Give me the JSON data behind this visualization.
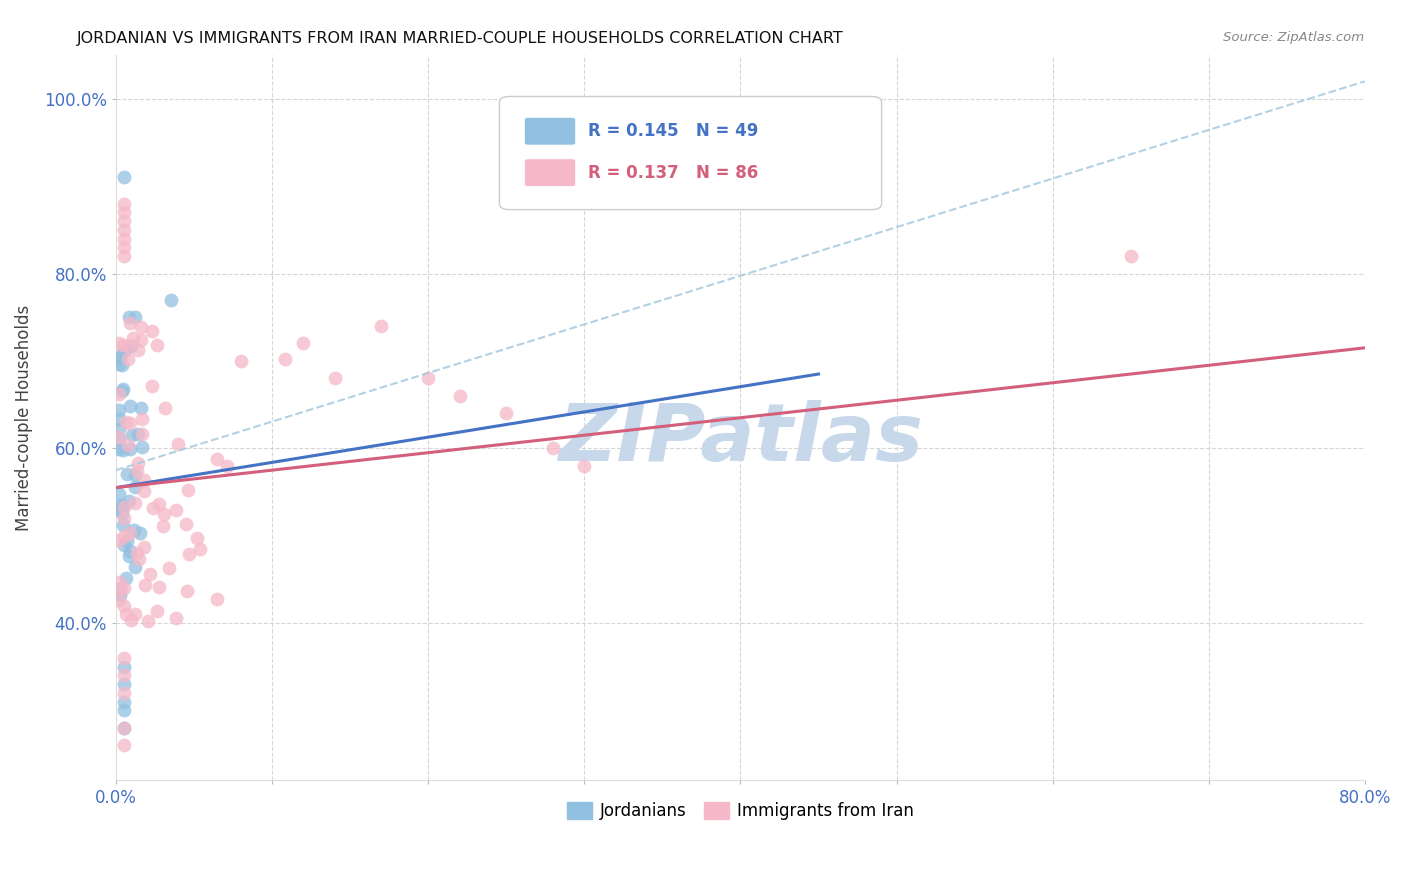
{
  "title": "JORDANIAN VS IMMIGRANTS FROM IRAN MARRIED-COUPLE HOUSEHOLDS CORRELATION CHART",
  "source": "Source: ZipAtlas.com",
  "ylabel": "Married-couple Households",
  "xlim": [
    0.0,
    0.8
  ],
  "ylim": [
    0.22,
    1.05
  ],
  "xtick_positions": [
    0.0,
    0.1,
    0.2,
    0.3,
    0.4,
    0.5,
    0.6,
    0.7,
    0.8
  ],
  "xticklabels": [
    "0.0%",
    "",
    "",
    "",
    "",
    "",
    "",
    "",
    "80.0%"
  ],
  "ytick_positions": [
    0.4,
    0.6,
    0.8,
    1.0
  ],
  "yticklabels": [
    "40.0%",
    "60.0%",
    "80.0%",
    "100.0%"
  ],
  "blue_R": 0.145,
  "blue_N": 49,
  "pink_R": 0.137,
  "pink_N": 86,
  "blue_scatter_color": "#92C0E0",
  "pink_scatter_color": "#F5B8C8",
  "blue_line_color": "#4472C4",
  "pink_line_color": "#D45F7A",
  "dashed_line_color": "#AACCE0",
  "text_color": "#4472C4",
  "watermark_color": "#C8D8EB",
  "background_color": "#FFFFFF",
  "grid_color": "#CCCCCC",
  "blue_line_x0": 0.0,
  "blue_line_x1": 0.45,
  "blue_line_y0": 0.555,
  "blue_line_y1": 0.685,
  "pink_line_x0": 0.0,
  "pink_line_x1": 0.8,
  "pink_line_y0": 0.555,
  "pink_line_y1": 0.715,
  "dash_line_x0": 0.0,
  "dash_line_x1": 0.8,
  "dash_line_y0": 0.575,
  "dash_line_y1": 1.02
}
